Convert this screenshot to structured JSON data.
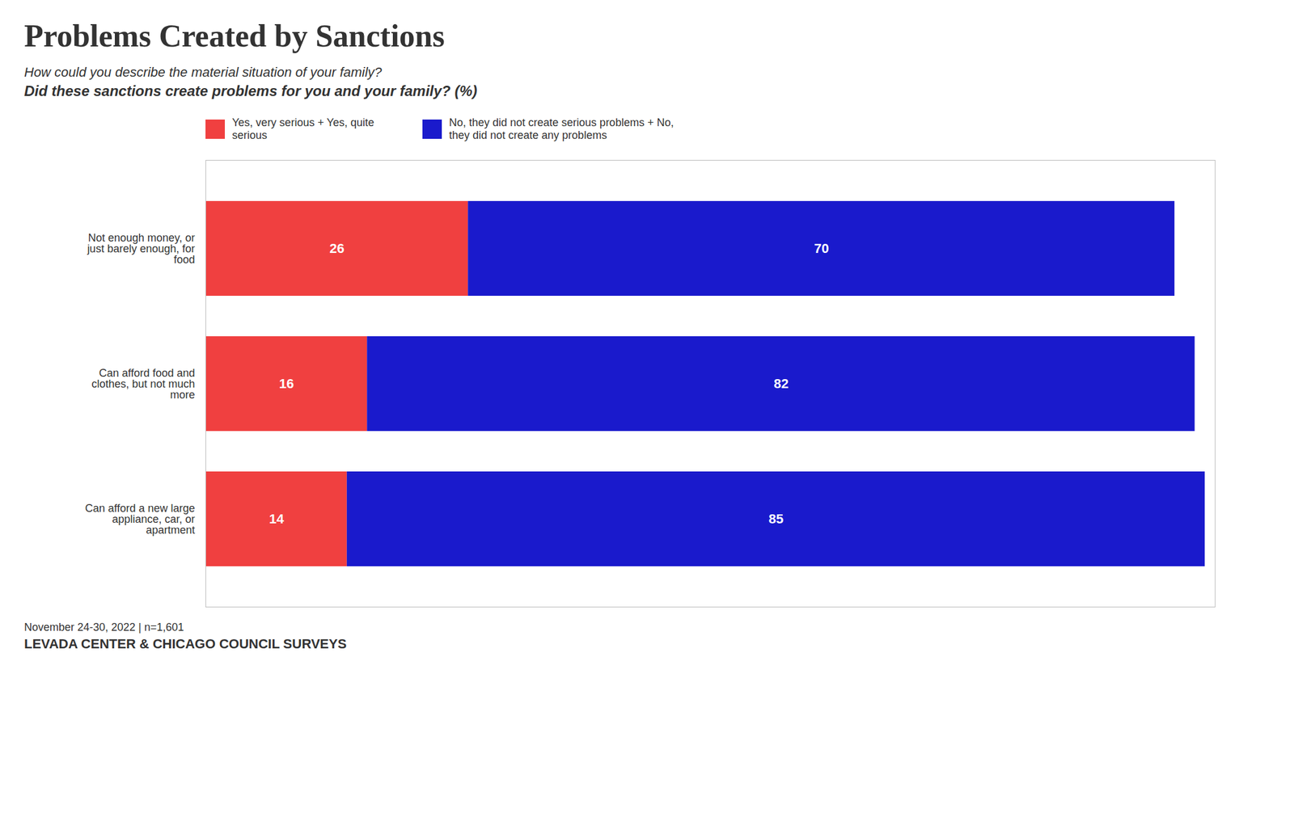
{
  "chart_data": {
    "type": "bar",
    "orientation": "horizontal",
    "stacked": true,
    "data_labels": true,
    "grid": false,
    "tick_labels": "y",
    "title": "Problems Created by Sanctions",
    "subtitle": [
      "How could you describe the material situation of your family?",
      "Did these sanctions create problems for you and your family? (%)"
    ],
    "annotations": [
      "November 24-30, 2022 | n=1,601",
      "LEVADA CENTER & CHICAGO COUNCIL SURVEYS"
    ],
    "categories": [
      "Not enough money, or\njust barely enough, for\nfood",
      "Can afford food and\nclothes, but not much\nmore",
      "Can afford a new large\nappliance, car, or\napartment"
    ],
    "series": [
      {
        "name": "Yes, very serious + Yes, quite\nserious",
        "color": "#F04040",
        "values": [
          26,
          16,
          14
        ]
      },
      {
        "name": "No, they did not create serious problems + No,\nthey did not create any problems",
        "color": "#1A1ACC",
        "values": [
          70,
          82,
          85
        ]
      }
    ],
    "xlim": [
      0,
      100
    ],
    "xticks": []
  }
}
